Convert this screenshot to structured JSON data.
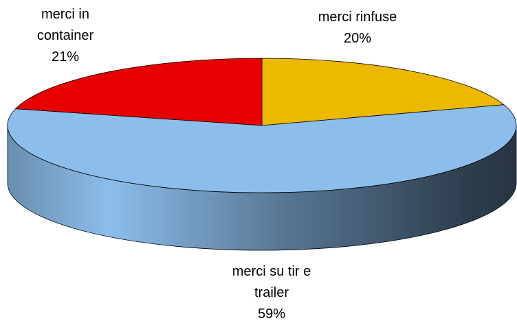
{
  "chart_data": {
    "type": "pie3d",
    "categories": [
      "merci rinfuse",
      "merci su tir e trailer",
      "merci in container"
    ],
    "values": [
      20,
      59,
      21
    ],
    "value_labels": [
      "20%",
      "59%",
      "21%"
    ],
    "colors": [
      "#EDB800",
      "#8CBDEB",
      "#E60000"
    ]
  }
}
